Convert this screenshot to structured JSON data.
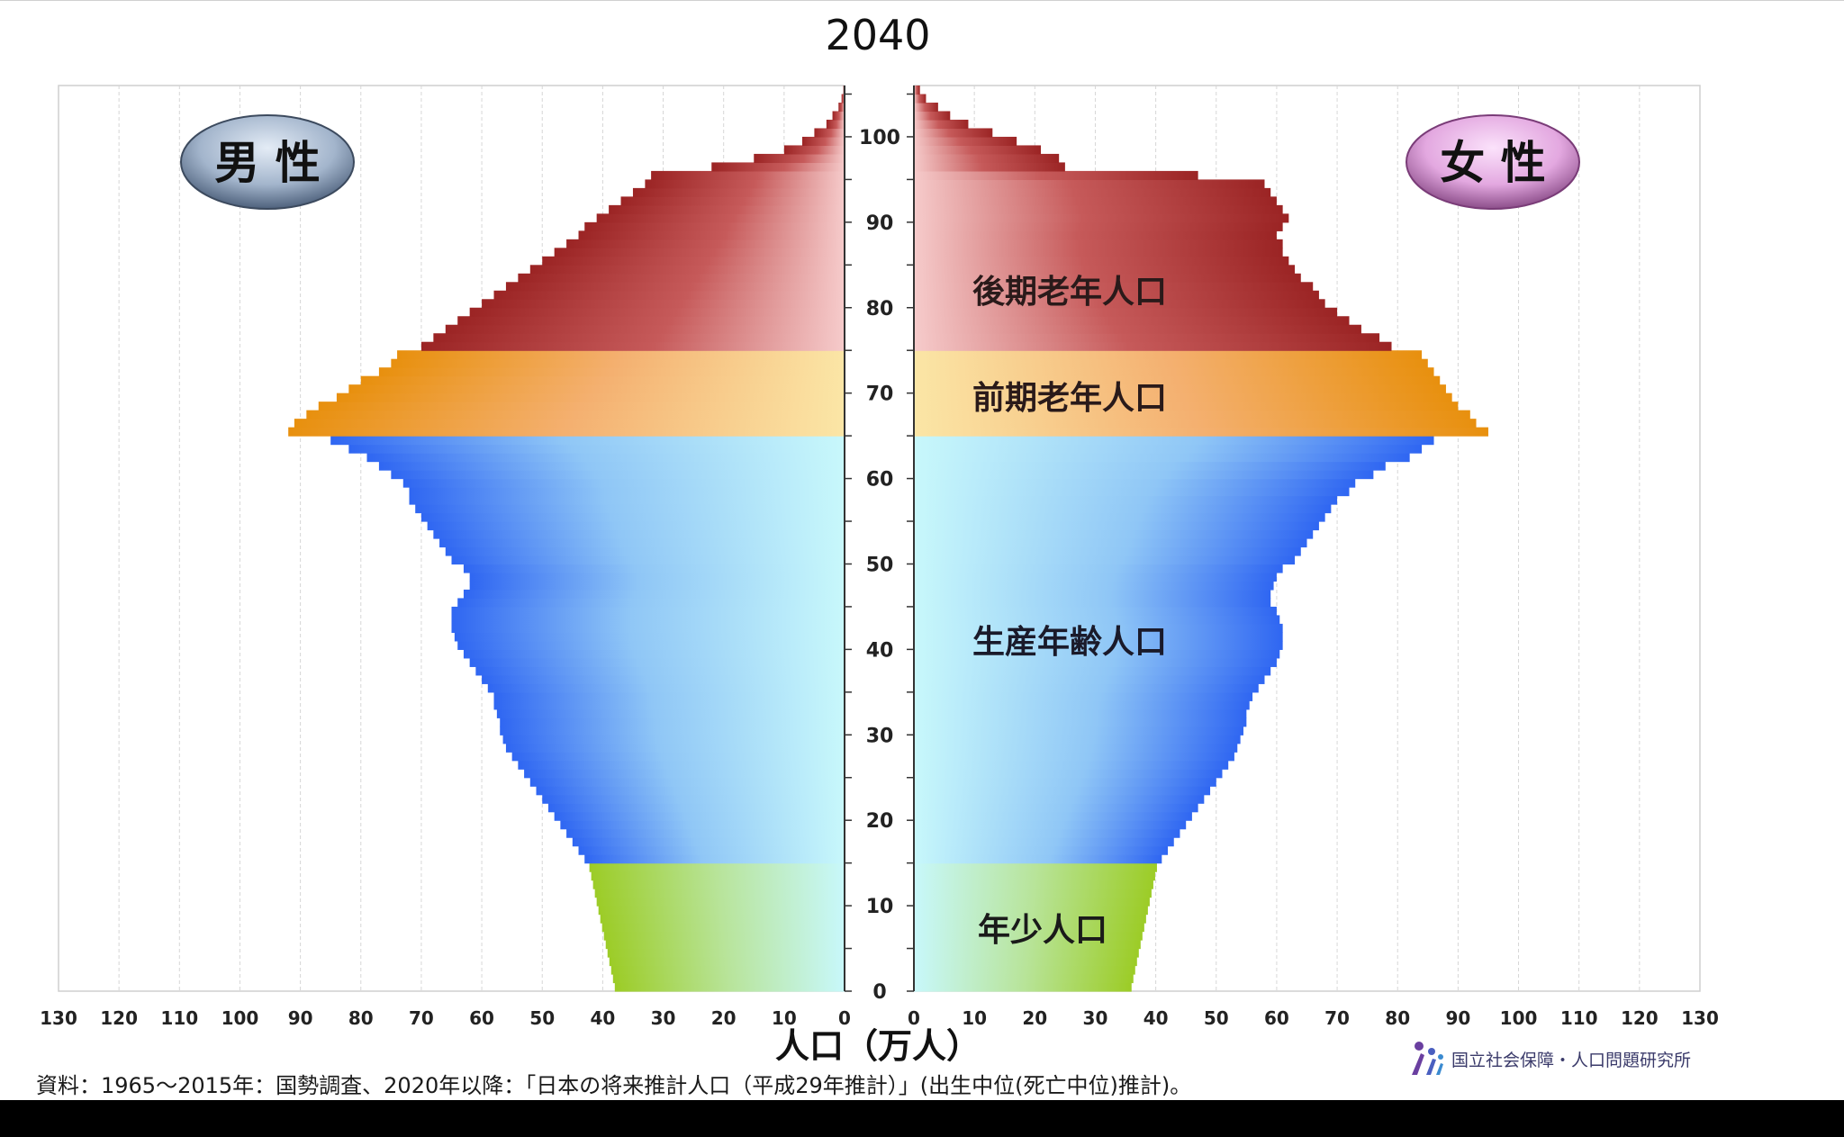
{
  "chart_data": {
    "type": "bar",
    "orientation": "horizontal-population-pyramid",
    "title": "2040",
    "xlabel": "人口（万人）",
    "ylabel": "",
    "xlim": [
      0,
      130
    ],
    "ylim": [
      0,
      105
    ],
    "x_ticks": [
      "0",
      "10",
      "20",
      "30",
      "40",
      "50",
      "60",
      "70",
      "80",
      "90",
      "100",
      "110",
      "120",
      "130"
    ],
    "y_ticks": [
      "0",
      "10",
      "20",
      "30",
      "40",
      "50",
      "60",
      "70",
      "80",
      "90",
      "100"
    ],
    "grid": true,
    "panels": [
      {
        "name": "男 性",
        "side": "left"
      },
      {
        "name": "女 性",
        "side": "right"
      }
    ],
    "groups": [
      {
        "name": "後期老年人口",
        "ages": [
          75,
          105
        ],
        "color": "#a52a2a"
      },
      {
        "name": "前期老年人口",
        "ages": [
          65,
          74
        ],
        "color": "#e8900e"
      },
      {
        "name": "生産年齢人口",
        "ages": [
          15,
          64
        ],
        "color": "#2f6bf5"
      },
      {
        "name": "年少人口",
        "ages": [
          0,
          14
        ],
        "color": "#9ccc26"
      }
    ],
    "series": [
      {
        "name": "男 性",
        "values": [
          38,
          38.3,
          38.6,
          38.9,
          39.2,
          39.5,
          39.8,
          40.1,
          40.4,
          40.7,
          41,
          41.3,
          41.6,
          41.9,
          42.2,
          43,
          44,
          45,
          46,
          47,
          48,
          49,
          50,
          51,
          52,
          53,
          54,
          55,
          56,
          56.5,
          57,
          57,
          57.5,
          58,
          58,
          59,
          60,
          61,
          62,
          63,
          64,
          64.5,
          65,
          65,
          65,
          64,
          63,
          62,
          62,
          63,
          65,
          66,
          67,
          68,
          69,
          70,
          71,
          72,
          72,
          73,
          75,
          77,
          79,
          82,
          85,
          92,
          91,
          89,
          87,
          84,
          82,
          80,
          77,
          75,
          74,
          70,
          68,
          66,
          64,
          62,
          60,
          58,
          56,
          54,
          52,
          50,
          48,
          46,
          44,
          43,
          41,
          39,
          37,
          35,
          33,
          32,
          22,
          15,
          10,
          7,
          5,
          3,
          2,
          1,
          0.5,
          0.2
        ]
      },
      {
        "name": "女 性",
        "values": [
          36,
          36.3,
          36.6,
          36.9,
          37.2,
          37.5,
          37.8,
          38.1,
          38.4,
          38.7,
          39,
          39.3,
          39.6,
          39.9,
          40.2,
          41,
          42,
          43,
          44,
          45,
          46,
          47,
          48,
          49,
          50,
          51,
          52,
          53,
          53.5,
          54,
          54.5,
          55,
          55,
          55.5,
          56,
          57,
          58,
          59,
          60,
          60.5,
          61,
          61,
          61,
          60.5,
          60,
          59,
          59,
          59.5,
          60,
          61,
          63,
          64,
          65,
          66,
          67,
          68,
          69,
          70,
          72,
          73,
          76,
          78,
          82,
          84,
          86,
          95,
          93,
          92,
          90,
          89,
          88,
          87,
          86,
          85,
          84,
          79,
          77,
          74,
          72,
          70,
          68,
          67,
          66,
          64,
          63,
          62,
          61,
          61,
          60,
          61,
          62,
          61,
          60,
          59,
          58,
          47,
          25,
          24,
          21,
          17,
          13,
          9,
          6,
          4,
          2,
          1
        ]
      }
    ]
  },
  "source_note": "資料：1965〜2015年：国勢調査、2020年以降：「日本の将来推計人口（平成29年推計）」(出生中位(死亡中位)推計)。",
  "logo_text": "国立社会保障・人口問題研究所",
  "logo_icon": "ipss-figures-icon"
}
